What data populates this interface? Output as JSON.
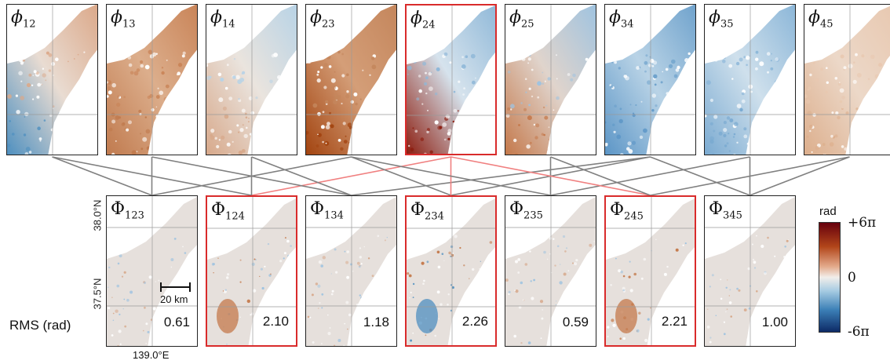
{
  "top_panels": [
    {
      "label": "ϕ",
      "sub": "12",
      "selected": false,
      "tone": "blue-south"
    },
    {
      "label": "ϕ",
      "sub": "13",
      "selected": false,
      "tone": "brown"
    },
    {
      "label": "ϕ",
      "sub": "14",
      "selected": false,
      "tone": "light-mixed"
    },
    {
      "label": "ϕ",
      "sub": "23",
      "selected": false,
      "tone": "dark-brown"
    },
    {
      "label": "ϕ",
      "sub": "24",
      "selected": true,
      "tone": "blue-north-darkred-south"
    },
    {
      "label": "ϕ",
      "sub": "25",
      "selected": false,
      "tone": "blue-north-brown-south"
    },
    {
      "label": "ϕ",
      "sub": "34",
      "selected": false,
      "tone": "blue"
    },
    {
      "label": "ϕ",
      "sub": "35",
      "selected": false,
      "tone": "blue-light"
    },
    {
      "label": "ϕ",
      "sub": "45",
      "selected": false,
      "tone": "light-brown"
    }
  ],
  "bottom_panels": [
    {
      "label": "Φ",
      "sub": "123",
      "rms": "0.61",
      "selected": false
    },
    {
      "label": "Φ",
      "sub": "124",
      "rms": "2.10",
      "selected": true
    },
    {
      "label": "Φ",
      "sub": "134",
      "rms": "1.18",
      "selected": false
    },
    {
      "label": "Φ",
      "sub": "234",
      "rms": "2.26",
      "selected": true
    },
    {
      "label": "Φ",
      "sub": "235",
      "rms": "0.59",
      "selected": false
    },
    {
      "label": "Φ",
      "sub": "245",
      "rms": "2.21",
      "selected": true
    },
    {
      "label": "Φ",
      "sub": "345",
      "rms": "1.00",
      "selected": false
    }
  ],
  "axes": {
    "lat_top": "38.0°N",
    "lat_bottom": "37.5°N",
    "lon": "139.0°E"
  },
  "scalebar": "20 km",
  "rms_label": "RMS (rad)",
  "colorbar": {
    "unit": "rad",
    "max": "+6π",
    "mid": "0",
    "min": "-6π",
    "colors": [
      "#67000d",
      "#b2461a",
      "#e3a98a",
      "#f2eeea",
      "#a9cde3",
      "#3b7fb6",
      "#0d2a66"
    ]
  },
  "colors": {
    "connector": "#808080",
    "highlight": "#d92b2b",
    "highlight_connector": "#f08080"
  }
}
